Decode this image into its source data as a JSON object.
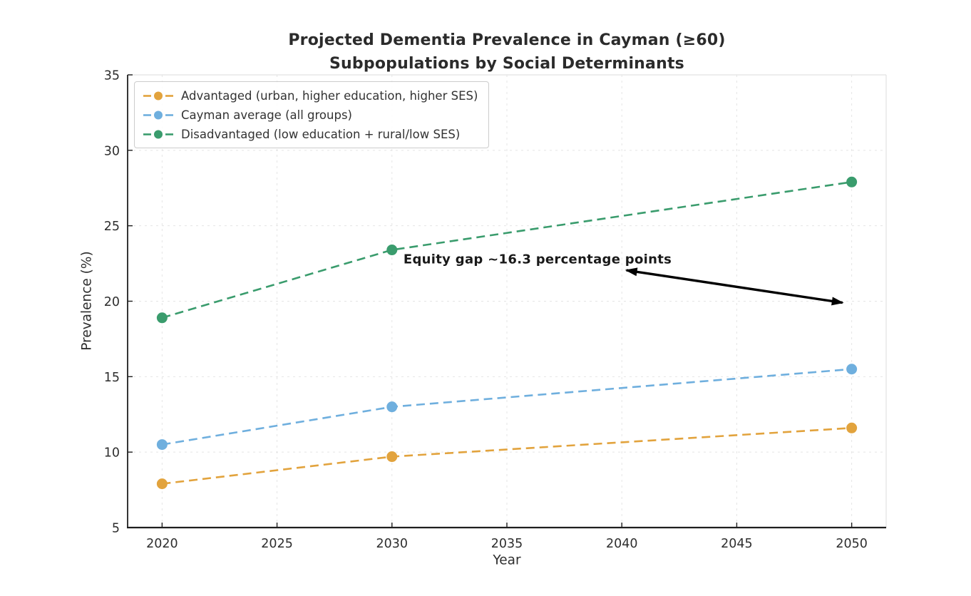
{
  "chart_data": {
    "type": "line",
    "title": "Projected Dementia Prevalence in Cayman (≥60) Subpopulations by Social Determinants",
    "title_lines": [
      "Projected Dementia Prevalence in Cayman (≥60)",
      "Subpopulations by Social Determinants"
    ],
    "xlabel": "Year",
    "ylabel": "Prevalence (%)",
    "x": [
      2020,
      2030,
      2050
    ],
    "series": [
      {
        "name": "Advantaged (urban, higher education, higher SES)",
        "values": [
          7.9,
          9.7,
          11.6
        ],
        "color": "#E2A33D"
      },
      {
        "name": "Cayman average (all groups)",
        "values": [
          10.5,
          13.0,
          15.5
        ],
        "color": "#6FAFDE"
      },
      {
        "name": "Disadvantaged (low education + rural/low SES)",
        "values": [
          18.9,
          23.4,
          27.9
        ],
        "color": "#3A9C6D"
      }
    ],
    "xlim": [
      2018.5,
      2051.5
    ],
    "ylim": [
      5,
      35
    ],
    "x_ticks": [
      2020,
      2025,
      2030,
      2035,
      2040,
      2045,
      2050
    ],
    "y_ticks": [
      5,
      10,
      15,
      20,
      25,
      30,
      35
    ],
    "grid": true,
    "legend_position": "upper left",
    "line_style": "dashed",
    "marker": "circle",
    "annotation": {
      "text": "Equity gap ~16.3 percentage points",
      "text_x": 2030.5,
      "text_y": 22.75,
      "arrow_x1": 2040.2,
      "arrow_y1": 22.05,
      "arrow_x2": 2049.6,
      "arrow_y2": 19.9,
      "arrow_color": "#000000"
    },
    "style": {
      "background": "#ffffff",
      "grid_color": "#dcdcdc",
      "axis_color": "#1f1f1f",
      "minor_spine_color": "#e2e2e2",
      "text_color": "#2e2e2e"
    }
  }
}
